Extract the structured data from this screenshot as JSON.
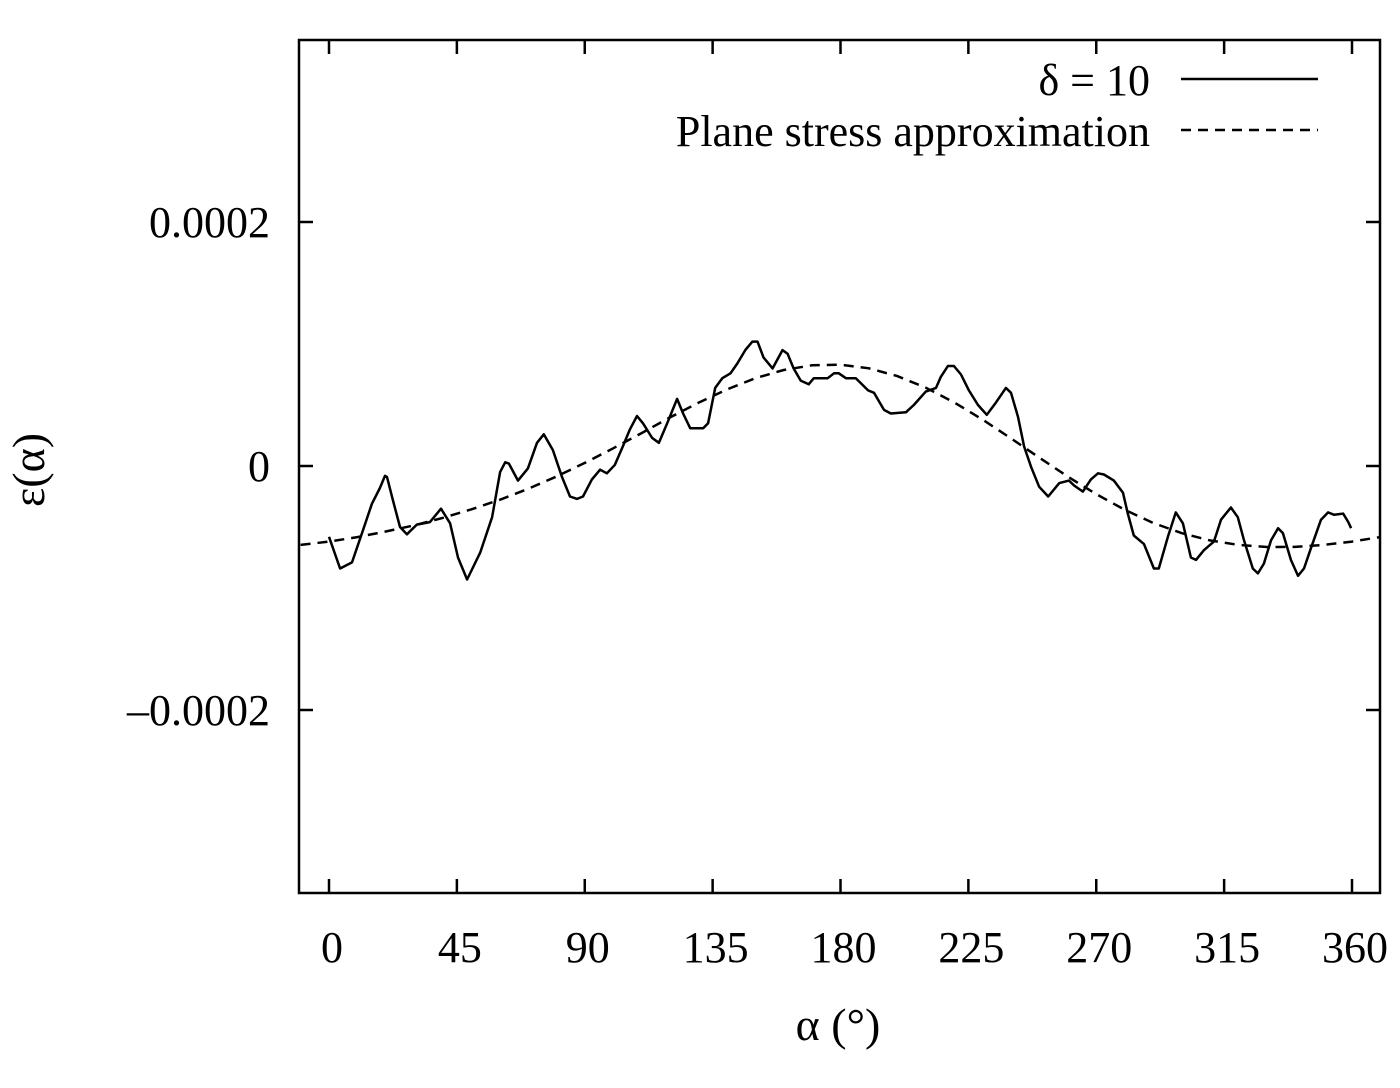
{
  "chart_data": {
    "type": "line",
    "title": "",
    "xlabel": "α (°)",
    "ylabel": "ε(α)",
    "xlim": [
      -10.5,
      370
    ],
    "ylim": [
      -0.00035,
      0.00035
    ],
    "x_ticks": [
      0,
      45,
      90,
      135,
      180,
      225,
      270,
      315,
      360
    ],
    "x_tick_labels": [
      "0",
      "45",
      "90",
      "135",
      "180",
      "225",
      "270",
      "315",
      "360"
    ],
    "y_ticks": [
      0.0002,
      0,
      -0.0002
    ],
    "y_tick_labels": [
      "0.0002",
      "0",
      "–0.0002"
    ],
    "grid": false,
    "legend_position": "top-right",
    "value_scale_note": "y values stored in units of 1e-5",
    "y_unit_multiplier": 1e-05,
    "series": [
      {
        "name": "δ = 10",
        "style": "solid",
        "color": "#000000",
        "x": [
          0,
          3.9,
          8.1,
          11.6,
          15.1,
          17.9,
          19.7,
          20.4,
          22.5,
          25,
          27.4,
          30.9,
          35.5,
          39.4,
          42.6,
          45.4,
          48.6,
          53.2,
          57.4,
          60.2,
          62,
          63.3,
          66.5,
          70,
          73.2,
          75.6,
          78.8,
          82,
          84.8,
          87.3,
          89.4,
          92.5,
          95.4,
          97.8,
          100.6,
          103.4,
          105.9,
          108.4,
          110.5,
          113.7,
          116.1,
          119,
          122.5,
          124.6,
          127.1,
          131.7,
          133.4,
          135.9,
          138.4,
          141.3,
          143.7,
          146.5,
          149,
          150.8,
          152.9,
          156.1,
          159.6,
          161.4,
          163.5,
          166,
          168.8,
          170.6,
          175.5,
          177.7,
          179.4,
          181.9,
          185.4,
          189.7,
          191.8,
          195.3,
          197.7,
          203,
          205.8,
          210,
          213.6,
          215.3,
          217.8,
          219.9,
          222.4,
          225.2,
          228.4,
          231.5,
          234.7,
          238.2,
          240,
          242.5,
          244.6,
          247.1,
          249.9,
          253.1,
          257,
          260.4,
          262.2,
          265.3,
          268.1,
          270.6,
          272.7,
          276.2,
          279.4,
          281.1,
          283.2,
          286.8,
          290.3,
          292,
          295.2,
          298,
          300.5,
          303.3,
          305.1,
          307.9,
          311.4,
          313.9,
          317.4,
          319.8,
          321.9,
          325.1,
          326.9,
          329,
          331.5,
          334,
          335.7,
          338.5,
          341,
          343.1,
          345.6,
          349.1,
          351.6,
          353.7,
          356.9,
          358.7,
          359.7
        ],
        "values": [
          -5.8,
          -8.4,
          -7.9,
          -5.5,
          -3.1,
          -1.8,
          -0.8,
          -0.9,
          -2.8,
          -5.0,
          -5.6,
          -4.8,
          -4.6,
          -3.5,
          -4.7,
          -7.5,
          -9.3,
          -7.1,
          -4.2,
          -0.5,
          0.3,
          0.2,
          -1.2,
          -0.2,
          1.9,
          2.6,
          1.3,
          -0.9,
          -2.5,
          -2.7,
          -2.5,
          -1.1,
          -0.3,
          -0.6,
          0.1,
          1.6,
          3.0,
          4.1,
          3.5,
          2.3,
          1.9,
          3.5,
          5.5,
          4.3,
          3.1,
          3.1,
          3.5,
          6.4,
          7.2,
          7.6,
          8.4,
          9.5,
          10.2,
          10.2,
          8.9,
          8.0,
          9.5,
          9.2,
          8.0,
          7.0,
          6.7,
          7.2,
          7.2,
          7.6,
          7.6,
          7.2,
          7.2,
          6.2,
          6.0,
          4.6,
          4.3,
          4.4,
          5.0,
          6.1,
          6.4,
          7.3,
          8.2,
          8.2,
          7.5,
          6.2,
          5.0,
          4.2,
          5.2,
          6.4,
          6.0,
          4.0,
          1.6,
          -0.1,
          -1.7,
          -2.5,
          -1.4,
          -1.2,
          -1.6,
          -2.1,
          -1.1,
          -0.6,
          -0.7,
          -1.2,
          -2.2,
          -3.9,
          -5.7,
          -6.4,
          -8.4,
          -8.4,
          -5.8,
          -3.8,
          -4.7,
          -7.5,
          -7.7,
          -6.9,
          -6.2,
          -4.4,
          -3.4,
          -4.2,
          -6.0,
          -8.4,
          -8.8,
          -8.0,
          -6.1,
          -5.1,
          -5.5,
          -7.7,
          -9.0,
          -8.4,
          -6.7,
          -4.4,
          -3.8,
          -4.0,
          -3.9,
          -4.6,
          -5.1
        ]
      },
      {
        "name": "Plane stress approximation",
        "style": "dashed",
        "color": "#000000",
        "x": [
          -10,
          0,
          10,
          20,
          30,
          40,
          50,
          60,
          70,
          80,
          90,
          100,
          110,
          120,
          130,
          140,
          150,
          160,
          170,
          180,
          190,
          200,
          210,
          220,
          230,
          240,
          250,
          260,
          270,
          280,
          290,
          300,
          310,
          320,
          330,
          340,
          350,
          360,
          370
        ],
        "values": [
          -6.47,
          -6.2,
          -5.83,
          -5.37,
          -4.86,
          -4.25,
          -3.56,
          -2.78,
          -1.88,
          -0.87,
          0.25,
          1.45,
          2.7,
          3.98,
          5.18,
          6.27,
          7.2,
          7.87,
          8.25,
          8.3,
          8.01,
          7.37,
          6.42,
          5.21,
          3.8,
          2.26,
          0.68,
          -0.87,
          -2.31,
          -3.59,
          -4.66,
          -5.5,
          -6.1,
          -6.47,
          -6.64,
          -6.63,
          -6.47,
          -6.2,
          -5.83
        ]
      }
    ]
  },
  "legend": {
    "items": [
      {
        "label": "δ = 10",
        "style": "solid"
      },
      {
        "label": "Plane stress approximation",
        "style": "dashed"
      }
    ]
  },
  "axes": {
    "x_label": "α (°)",
    "y_label": "ε(α)"
  }
}
